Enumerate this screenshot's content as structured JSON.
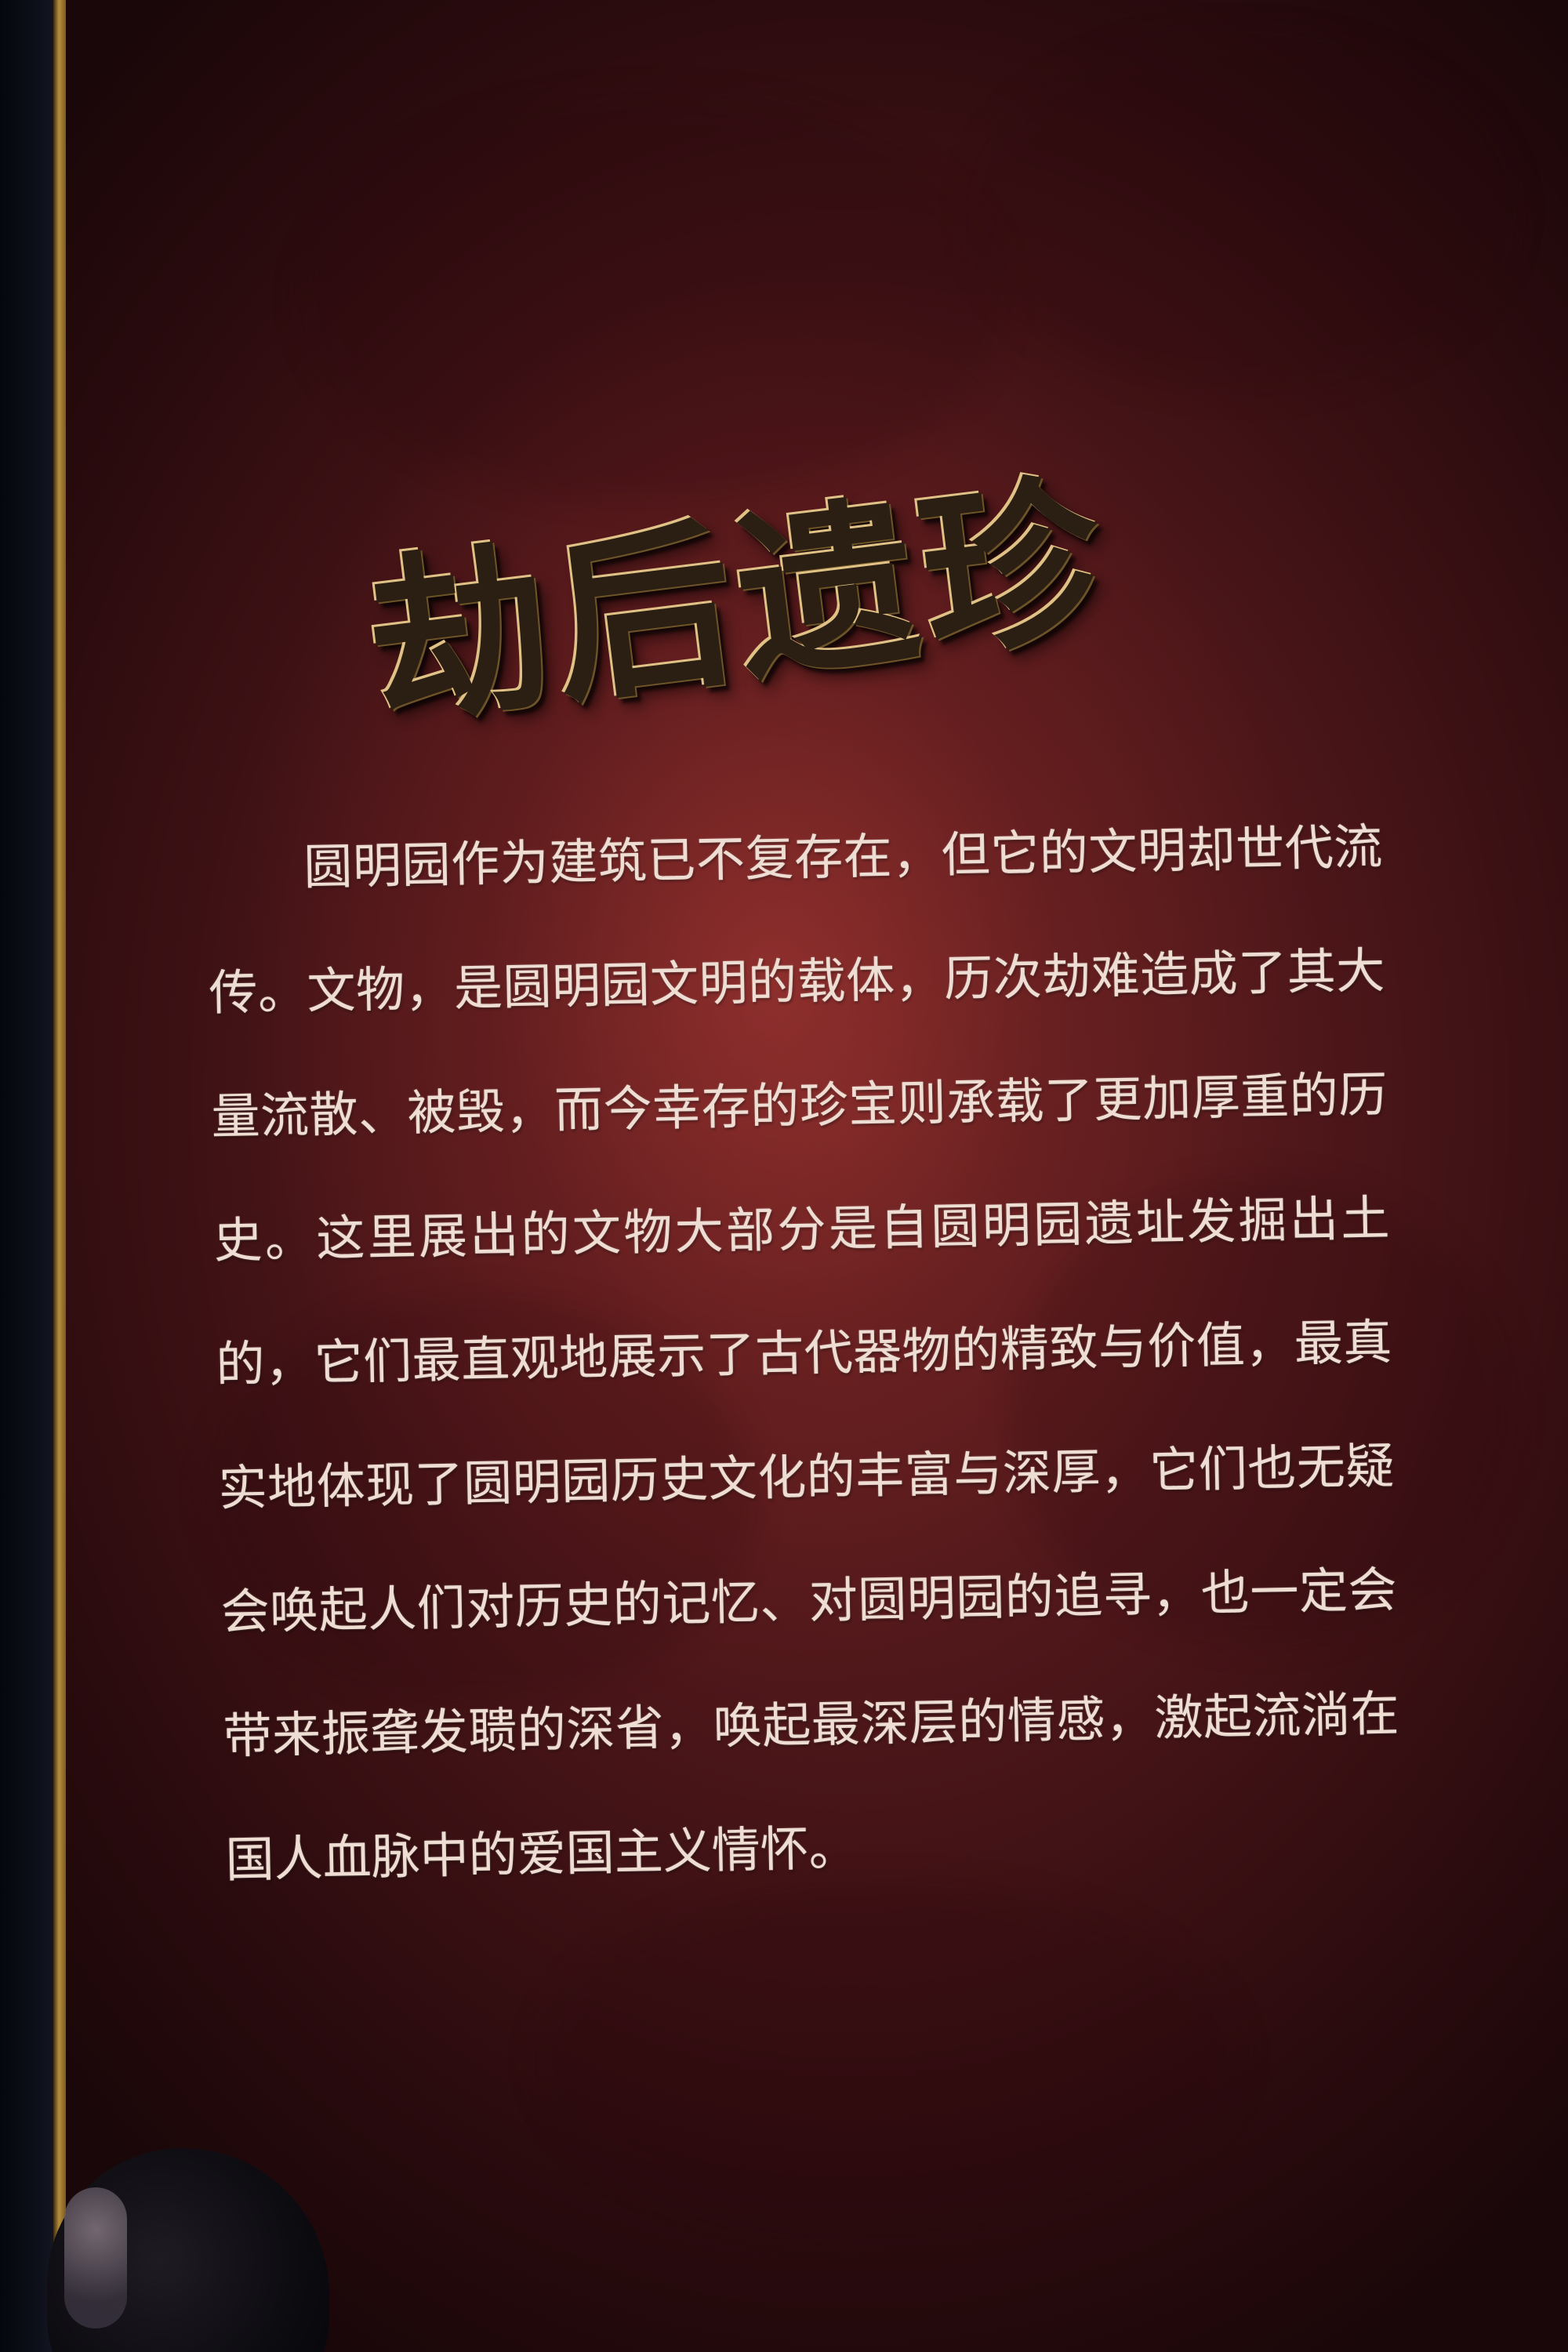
{
  "title": "劫后遗珍",
  "body": "圆明园作为建筑已不复存在，但它的文明却世代流传。文物，是圆明园文明的载体，历次劫难造成了其大量流散、被毁，而今幸存的珍宝则承载了更加厚重的历史。这里展出的文物大部分是自圆明园遗址发掘出土的，它们最直观地展示了古代器物的精致与价值，最真实地体现了圆明园历史文化的丰富与深厚，它们也无疑会唤起人们对历史的记忆、对圆明园的追寻，也一定会带来振聋发聩的深省，唤起最深层的情感，激起流淌在国人血脉中的爱国主义情怀。",
  "colors": {
    "wall": "#5a1c1f",
    "title": "#2a1f12",
    "title_highlight": "#e0c286",
    "text": "#eeddd2",
    "frame": "#b88f3c"
  }
}
